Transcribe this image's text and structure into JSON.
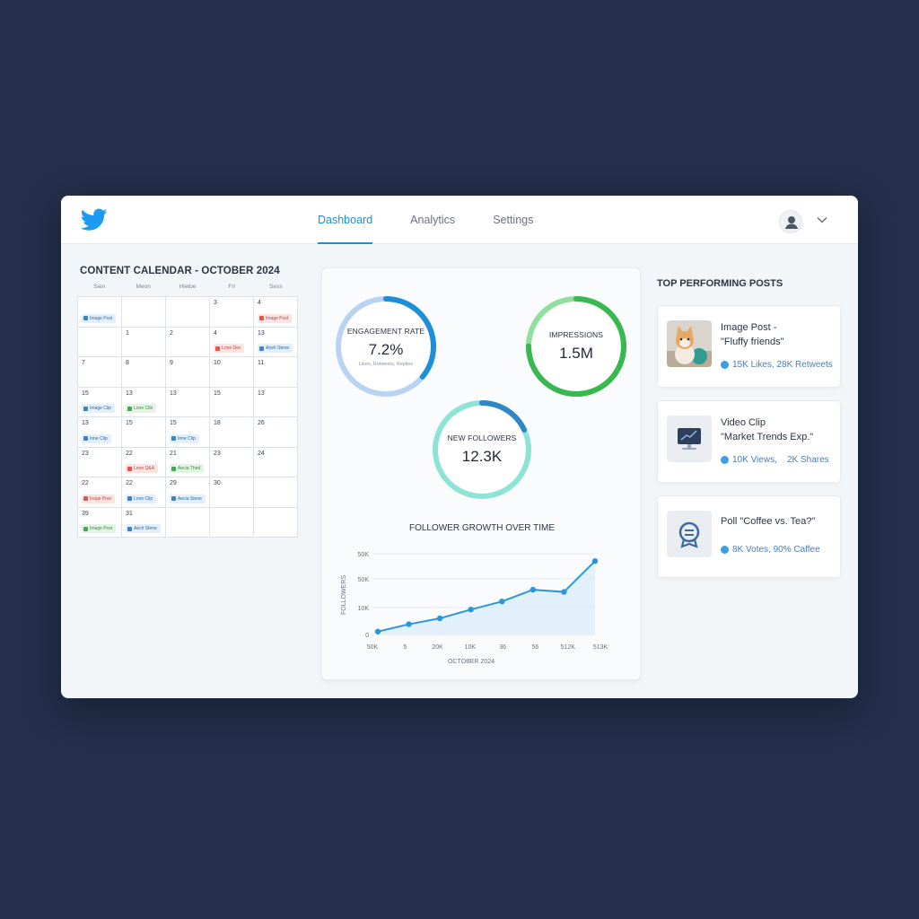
{
  "nav": {
    "tabs": [
      {
        "label": "Dashboard"
      },
      {
        "label": "Analytics"
      },
      {
        "label": "Settings"
      }
    ]
  },
  "calendar": {
    "title": "CONTENT CALENDAR - OCTOBER 2024",
    "weekdays": [
      "Sien",
      "Meon",
      "Hietoe",
      "Frl",
      "Sess"
    ],
    "rows": [
      [
        {
          "day": "",
          "chip": "Image Post",
          "color": "blue"
        },
        {
          "day": ""
        },
        {
          "day": ""
        },
        {
          "day": "3"
        },
        {
          "day": "4",
          "chip": "Image Post",
          "color": "red"
        }
      ],
      [
        {
          "day": ""
        },
        {
          "day": "1"
        },
        {
          "day": "2"
        },
        {
          "day": "4",
          "chip": "Lnne Dev",
          "color": "red"
        },
        {
          "day": "13",
          "chip": "Aneh Stene",
          "color": "blue"
        }
      ],
      [
        {
          "day": "7"
        },
        {
          "day": "8"
        },
        {
          "day": "9"
        },
        {
          "day": "10"
        },
        {
          "day": "11"
        }
      ],
      [
        {
          "day": "15",
          "chip": "Image Clip",
          "color": "blue"
        },
        {
          "day": "13",
          "chip": "Lnne Clib",
          "color": "green"
        },
        {
          "day": "13"
        },
        {
          "day": "15"
        },
        {
          "day": "13"
        }
      ],
      [
        {
          "day": "13",
          "chip": "Inne Clip",
          "color": "blue"
        },
        {
          "day": "15"
        },
        {
          "day": "15",
          "chip": "Inne Clip",
          "color": "blue"
        },
        {
          "day": "18"
        },
        {
          "day": "26"
        }
      ],
      [
        {
          "day": "23"
        },
        {
          "day": "22",
          "chip": "Lnne Q&A",
          "color": "red"
        },
        {
          "day": "21",
          "chip": "Aecia Thed",
          "color": "green"
        },
        {
          "day": "23"
        },
        {
          "day": "24"
        }
      ],
      [
        {
          "day": "22",
          "chip": "Inage Post",
          "color": "red"
        },
        {
          "day": "22",
          "chip": "Lnne Clip",
          "color": "blue"
        },
        {
          "day": "29",
          "chip": "Aecia Stene",
          "color": "blue"
        },
        {
          "day": "30"
        },
        {
          "day": ""
        }
      ],
      [
        {
          "day": "39",
          "chip": "Image Post",
          "color": "green"
        },
        {
          "day": "31",
          "chip": "Aech Stene",
          "color": "blue"
        },
        {
          "day": ""
        },
        {
          "day": ""
        },
        {
          "day": ""
        }
      ]
    ]
  },
  "metrics": {
    "engagement": {
      "label": "ENGAGEMENT RATE",
      "value": "7.2%",
      "sub": "Likes, Retweets, Replies",
      "fraction": 0.36
    },
    "impressions": {
      "label": "IMPRESSIONS",
      "value": "1.5M",
      "fraction": 0.75
    },
    "followers": {
      "label": "NEW FOLLOWERS",
      "value": "12.3K",
      "fraction": 0.18
    }
  },
  "chart_data": {
    "type": "line",
    "title": "FOLLOWER GROWTH OVER TIME",
    "xlabel": "OCTOBER 2024",
    "ylabel": "FOLLOWERS",
    "x_ticks": [
      "50K",
      "5",
      "20K",
      "10K",
      "36",
      "56",
      "512K",
      "513K"
    ],
    "y_ticks": [
      "0",
      "10K",
      "50K",
      "50K"
    ],
    "values": [
      4,
      14,
      22,
      34,
      45,
      61,
      58,
      100
    ],
    "ylim": [
      0,
      110
    ]
  },
  "top_posts": {
    "title": "TOP PERFORMING POSTS",
    "items": [
      {
        "title_line1": "Image Post -",
        "title_line2": "\"Fluffy friends\"",
        "stats": "15K Likes, 28K Retweets"
      },
      {
        "title_line1": "Video Clip",
        "title_line2": "\"Market Trends Exp.\"",
        "stats": "10K Views,    2K Shares"
      },
      {
        "title_line1": "Poll \"Coffee vs. Tea?\"",
        "title_line2": "",
        "stats": "8K Votes, 90% Caffee"
      }
    ]
  },
  "colors": {
    "accent": "#1d8fd8",
    "background": "#232f4b",
    "green": "#3fbf5a",
    "teal": "#7fdcd0"
  }
}
